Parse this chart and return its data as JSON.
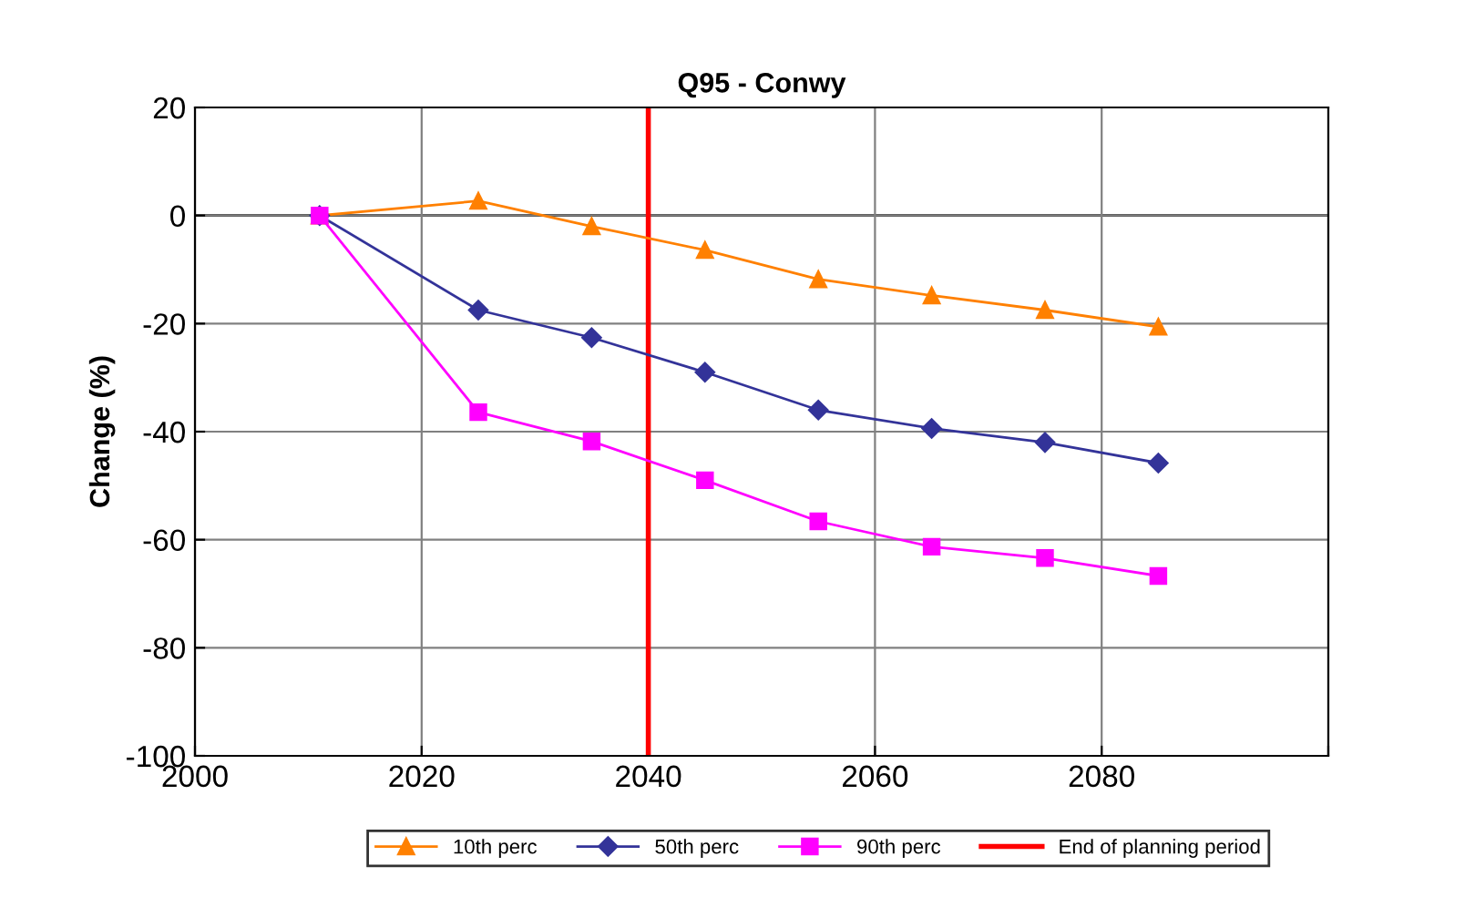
{
  "chart_data": {
    "type": "line",
    "title": "Q95 - Conwy",
    "ylabel": "Change (%)",
    "x": [
      2011,
      2025,
      2035,
      2045,
      2055,
      2065,
      2075,
      2085
    ],
    "series": [
      {
        "name": "10th perc",
        "color": "#ff8000",
        "marker": "triangle",
        "values": [
          0,
          2.7,
          -2,
          -6.4,
          -11.8,
          -14.8,
          -17.5,
          -20.6
        ]
      },
      {
        "name": "50th perc",
        "color": "#333399",
        "marker": "diamond",
        "values": [
          0,
          -17.5,
          -22.6,
          -29,
          -36,
          -39.4,
          -42,
          -45.8
        ]
      },
      {
        "name": "90th perc",
        "color": "#ff00ff",
        "marker": "square",
        "values": [
          0,
          -36.4,
          -41.8,
          -49,
          -56.6,
          -61.3,
          -63.4,
          -66.7
        ]
      }
    ],
    "ref_lines": [
      {
        "axis": "x",
        "value": 2040,
        "label": "End of planning period",
        "color": "#ff0000"
      }
    ],
    "xlim": [
      2000,
      2100
    ],
    "xticks": [
      2000,
      2020,
      2040,
      2060,
      2080,
      {
        "value": 2100,
        "label": null
      }
    ],
    "ylim": [
      -100,
      20
    ],
    "yticks": [
      -100,
      -80,
      -60,
      -40,
      -20,
      0,
      20
    ],
    "grid": true,
    "legend": "bottom",
    "line_style": "solid"
  }
}
